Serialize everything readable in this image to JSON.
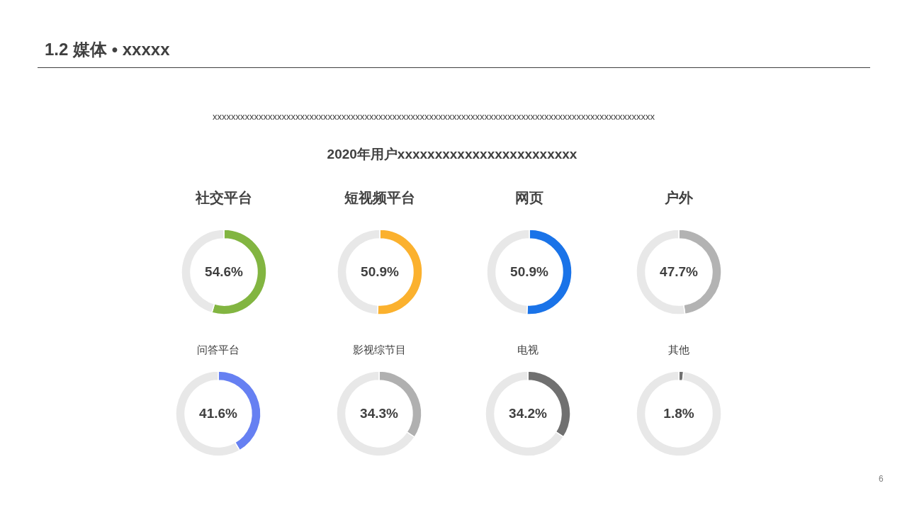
{
  "chart_data": [
    {
      "type": "other",
      "title": "1.2 媒体 • xxxxx",
      "subtitle": "2020年用户xxxxxxxxxxxxxxxxxxxxxxxx",
      "annotations": [
        "xxxxxxxxxxxxxxxxxxxxxxxxxxxxxxxxxxxxxxxxxxxxxxxxxxxxxxxxxxxxxxxxxxxxxxxxxxxxxxxxxxxxxxxxxxxxxxxx",
        "6"
      ]
    },
    {
      "type": "donut",
      "title": "社交平台",
      "categories": [
        null,
        null
      ],
      "values": [
        54.6,
        45.4
      ],
      "colors": [
        "#82b541",
        "#e8e8e8"
      ],
      "value_labels": [
        "54.6%",
        null
      ]
    },
    {
      "type": "donut",
      "title": "短视频平台",
      "categories": [
        null,
        null
      ],
      "values": [
        50.9,
        49.1
      ],
      "colors": [
        "#fbb12e",
        "#e8e8e8"
      ],
      "value_labels": [
        "50.9%",
        null
      ]
    },
    {
      "type": "donut",
      "title": "网页",
      "categories": [
        null,
        null
      ],
      "values": [
        50.9,
        49.1
      ],
      "colors": [
        "#1a73e8",
        "#e8e8e8"
      ],
      "value_labels": [
        "50.9%",
        null
      ]
    },
    {
      "type": "donut",
      "title": "户外",
      "categories": [
        null,
        null
      ],
      "values": [
        47.7,
        52.3
      ],
      "colors": [
        "#b3b3b3",
        "#e8e8e8"
      ],
      "value_labels": [
        "47.7%",
        null
      ]
    },
    {
      "type": "donut",
      "title": "问答平台",
      "categories": [
        null,
        null
      ],
      "values": [
        41.6,
        58.4
      ],
      "colors": [
        "#6680f2",
        "#e8e8e8"
      ],
      "value_labels": [
        "41.6%",
        null
      ]
    },
    {
      "type": "donut",
      "title": "影视综节目",
      "categories": [
        null,
        null
      ],
      "values": [
        34.3,
        65.7
      ],
      "colors": [
        "#b0b0b0",
        "#e8e8e8"
      ],
      "value_labels": [
        "34.3%",
        null
      ]
    },
    {
      "type": "donut",
      "title": "电视",
      "categories": [
        null,
        null
      ],
      "values": [
        34.2,
        65.8
      ],
      "colors": [
        "#707070",
        "#e8e8e8"
      ],
      "value_labels": [
        "34.2%",
        null
      ]
    },
    {
      "type": "donut",
      "title": "其他",
      "categories": [
        null,
        null
      ],
      "values": [
        1.8,
        98.2
      ],
      "colors": [
        "#707070",
        "#e8e8e8"
      ],
      "value_labels": [
        "1.8%",
        null
      ]
    }
  ]
}
